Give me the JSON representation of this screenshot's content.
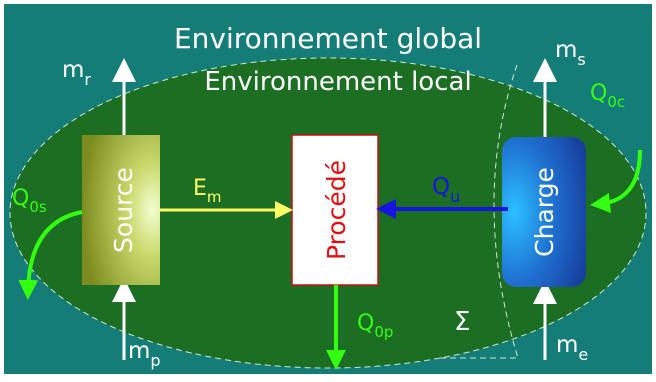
{
  "labels": {
    "global_env": "Environnement global",
    "local_env": "Environnement local",
    "source": "Source",
    "process": "Procédé",
    "charge": "Charge",
    "sigma": "Σ"
  },
  "flows": {
    "mr": {
      "base": "m",
      "sub": "r"
    },
    "ms": {
      "base": "m",
      "sub": "s"
    },
    "mp": {
      "base": "m",
      "sub": "p"
    },
    "me": {
      "base": "m",
      "sub": "e"
    },
    "em": {
      "base": "E",
      "sub": "m"
    },
    "qu": {
      "base": "Q",
      "sub": "u"
    },
    "q0s": {
      "base": "Q",
      "sub": "0s"
    },
    "q0c": {
      "base": "Q",
      "sub": "0c"
    },
    "q0p": {
      "base": "Q",
      "sub": "0p"
    }
  },
  "colors": {
    "background": "#147d77",
    "local_env": "#1b6e22",
    "source_edge": "#8a9a24",
    "source_center": "#f3ffd0",
    "process_border": "#c81010",
    "process_text": "#e01010",
    "charge_edge": "#173b9a",
    "charge_center": "#2cc0ff",
    "energy_arrow": "#ffff66",
    "useful_heat_arrow": "#1515e0",
    "loss_arrow": "#33ff11",
    "mass_arrow": "#ffffff",
    "text": "#ffffff"
  }
}
